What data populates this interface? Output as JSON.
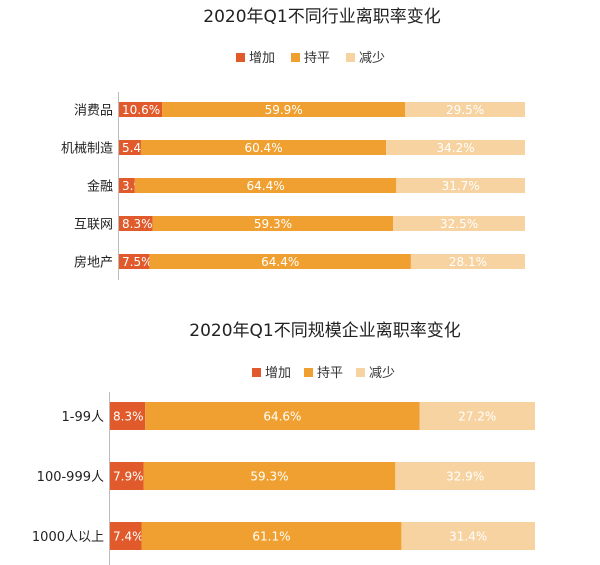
{
  "chart_data": [
    {
      "type": "bar",
      "orientation": "horizontal",
      "stacked": "percent",
      "title": "2020年Q1不同行业离职率变化",
      "categories": [
        "消费品",
        "机械制造",
        "金融",
        "互联网",
        "房地产"
      ],
      "series": [
        {
          "name": "增加",
          "values": [
            10.6,
            5.4,
            3.9,
            8.3,
            7.5
          ],
          "color": "#e05a2b"
        },
        {
          "name": "持平",
          "values": [
            59.9,
            60.4,
            64.4,
            59.3,
            64.4
          ],
          "color": "#f0a030"
        },
        {
          "name": "减少",
          "values": [
            29.5,
            34.2,
            31.7,
            32.5,
            28.1
          ],
          "color": "#f6d3a0"
        }
      ],
      "value_labels": [
        [
          "10.6%",
          "5.4%",
          "3.9%",
          "8.3%",
          "7.5%"
        ],
        [
          "59.9%",
          "60.4%",
          "64.4%",
          "59.3%",
          "64.4%"
        ],
        [
          "29.5%",
          "34.2%",
          "31.7%",
          "32.5%",
          "28.1%"
        ]
      ],
      "legend": "top-center",
      "grid": false
    },
    {
      "type": "bar",
      "orientation": "horizontal",
      "stacked": "percent",
      "title": "2020年Q1不同规模企业离职率变化",
      "categories": [
        "1-99人",
        "100-999人",
        "1000人以上"
      ],
      "series": [
        {
          "name": "增加",
          "values": [
            8.3,
            7.9,
            7.4
          ],
          "color": "#e05a2b"
        },
        {
          "name": "持平",
          "values": [
            64.6,
            59.3,
            61.1
          ],
          "color": "#f0a030"
        },
        {
          "name": "减少",
          "values": [
            27.2,
            32.9,
            31.4
          ],
          "color": "#f6d3a0"
        }
      ],
      "value_labels": [
        [
          "8.3%",
          "7.9%",
          "7.4%"
        ],
        [
          "64.6%",
          "59.3%",
          "61.1%"
        ],
        [
          "27.2%",
          "32.9%",
          "31.4%"
        ]
      ],
      "legend": "top-center",
      "grid": false
    }
  ]
}
